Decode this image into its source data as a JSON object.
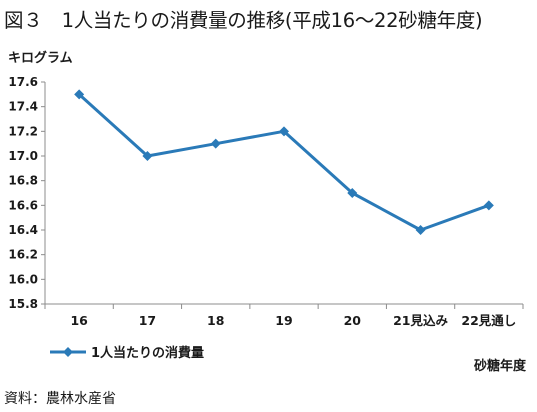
{
  "title": "図３　1人当たりの消費量の推移(平成16～22砂糖年度)",
  "source": "資料：農林水産省",
  "chart_data": {
    "type": "line",
    "ylabel": "キログラム",
    "xlabel": "砂糖年度",
    "categories": [
      "16",
      "17",
      "18",
      "19",
      "20",
      "21見込み",
      "22見通し"
    ],
    "series": [
      {
        "name": "1人当たりの消費量",
        "values": [
          17.5,
          17.0,
          17.1,
          17.2,
          16.7,
          16.4,
          16.6
        ]
      }
    ],
    "ylim": [
      15.8,
      17.6
    ],
    "yticks": [
      "15.8",
      "16.0",
      "16.2",
      "16.4",
      "16.6",
      "16.8",
      "17.0",
      "17.2",
      "17.4",
      "17.6"
    ],
    "grid": false,
    "legend": "bottom-left",
    "line_color": "#2a7ab8",
    "axis_color": "#8c8c8c"
  }
}
